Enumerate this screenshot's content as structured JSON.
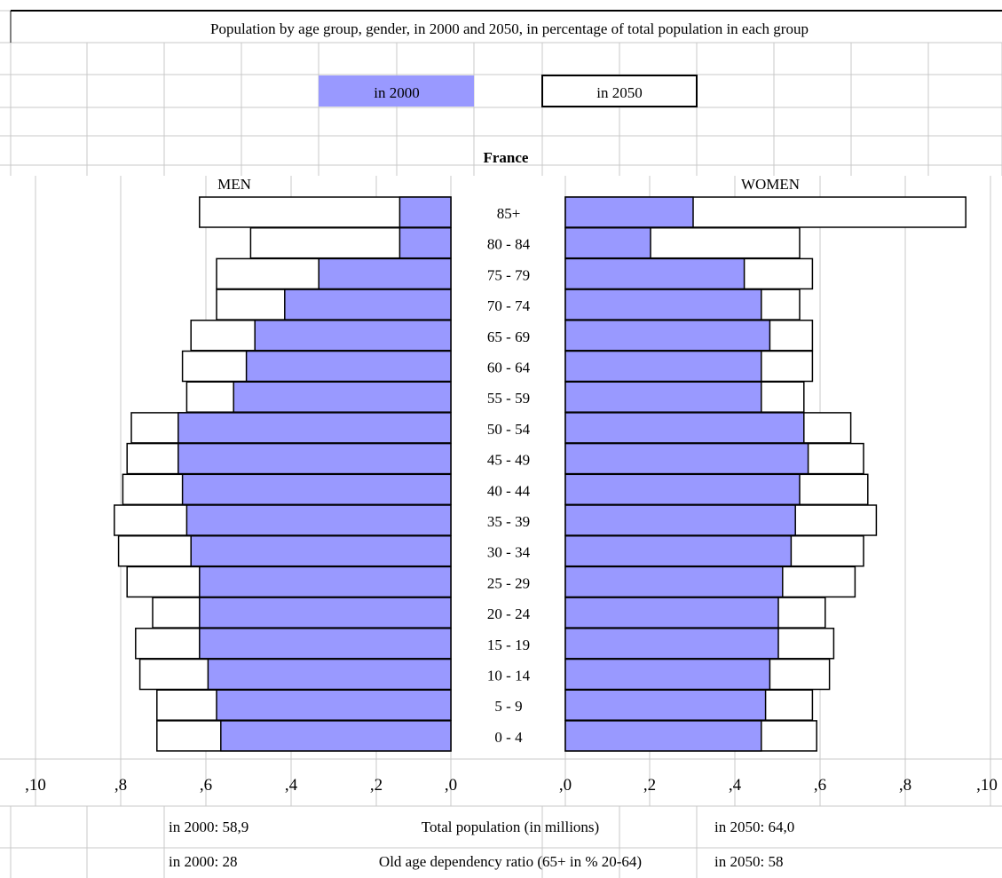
{
  "title": "Population by age group, gender, in 2000 and 2050, in percentage of total population in each group",
  "legend": {
    "series_2000": "in 2000",
    "series_2050": "in 2050"
  },
  "country": "France",
  "men_label": "MEN",
  "women_label": "WOMEN",
  "colors": {
    "fill_2000": "#9999ff",
    "fill_2050": "#ffffff",
    "grid": "#c8c8c8",
    "outline": "#000000"
  },
  "footer": {
    "total_label": "Total population (in millions)",
    "total_2000": "in 2000: 58,9",
    "total_2050": "in 2050: 64,0",
    "ratio_label": "Old age dependency ratio (65+ in % 20-64)",
    "ratio_2000": "in 2000: 28",
    "ratio_2050": "in 2050: 58"
  },
  "chart_data": {
    "type": "bar",
    "orientation": "horizontal",
    "subtype": "population-pyramid",
    "title": "Population by age group, gender, in 2000 and 2050, in percentage of total population in each group",
    "categories": [
      "85+",
      "80 - 84",
      "75 - 79",
      "70 - 74",
      "65 - 69",
      "60 - 64",
      "55 - 59",
      "50 - 54",
      "45 - 49",
      "40 - 44",
      "35 - 39",
      "30 - 34",
      "25 - 29",
      "20 - 24",
      "15 - 19",
      "10 - 14",
      "5 - 9",
      "0 - 4"
    ],
    "men": {
      "2000": [
        0.12,
        0.12,
        0.31,
        0.39,
        0.46,
        0.48,
        0.51,
        0.64,
        0.64,
        0.63,
        0.62,
        0.61,
        0.59,
        0.59,
        0.59,
        0.57,
        0.55,
        0.54
      ],
      "2050": [
        0.59,
        0.47,
        0.55,
        0.55,
        0.61,
        0.63,
        0.62,
        0.75,
        0.76,
        0.77,
        0.79,
        0.78,
        0.76,
        0.7,
        0.74,
        0.73,
        0.69,
        0.69
      ]
    },
    "women": {
      "2000": [
        0.3,
        0.2,
        0.42,
        0.46,
        0.48,
        0.46,
        0.46,
        0.56,
        0.57,
        0.55,
        0.54,
        0.53,
        0.51,
        0.5,
        0.5,
        0.48,
        0.47,
        0.46
      ],
      "2050": [
        0.94,
        0.55,
        0.58,
        0.55,
        0.58,
        0.58,
        0.56,
        0.67,
        0.7,
        0.71,
        0.73,
        0.7,
        0.68,
        0.61,
        0.63,
        0.62,
        0.58,
        0.59
      ]
    },
    "series": [
      {
        "name": "in 2000"
      },
      {
        "name": "in 2050"
      }
    ],
    "x_ticks_men": [
      ",10",
      ",8",
      ",6",
      ",4",
      ",2",
      ",0"
    ],
    "x_ticks_women": [
      ",0",
      ",2",
      ",4",
      ",6",
      ",8",
      ",10"
    ],
    "xlim": [
      0,
      1.0
    ],
    "grid": true
  }
}
